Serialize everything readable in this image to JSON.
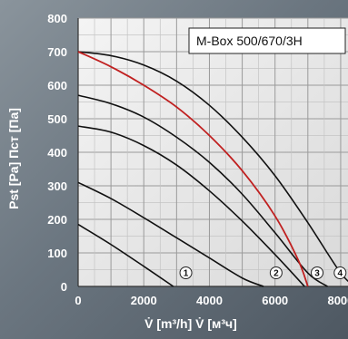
{
  "chart_data": {
    "type": "line",
    "title": "M-Box 500/670/3H",
    "xlabel": "V̇ [m³/h]  V̇ [м³ч]",
    "ylabel": "Pst [Pa]  Пст [Па]",
    "xlim": [
      0,
      8500
    ],
    "ylim": [
      0,
      800
    ],
    "x_ticks": [
      0,
      2000,
      4000,
      6000,
      8000
    ],
    "y_ticks": [
      0,
      100,
      200,
      300,
      400,
      500,
      600,
      700,
      800
    ],
    "grid": true,
    "series": [
      {
        "name": "1",
        "color": "#111111",
        "points": [
          [
            0,
            185
          ],
          [
            1000,
            125
          ],
          [
            2000,
            60
          ],
          [
            2900,
            0
          ]
        ]
      },
      {
        "name": "2",
        "color": "#111111",
        "points": [
          [
            0,
            310
          ],
          [
            1000,
            262
          ],
          [
            2000,
            205
          ],
          [
            3000,
            145
          ],
          [
            4000,
            85
          ],
          [
            5000,
            25
          ],
          [
            5650,
            0
          ]
        ]
      },
      {
        "name": "3",
        "color": "#111111",
        "points": [
          [
            0,
            478
          ],
          [
            1000,
            460
          ],
          [
            2000,
            420
          ],
          [
            3000,
            362
          ],
          [
            4000,
            285
          ],
          [
            5000,
            195
          ],
          [
            6000,
            95
          ],
          [
            6900,
            0
          ]
        ]
      },
      {
        "name": "4",
        "color": "#111111",
        "points": [
          [
            0,
            570
          ],
          [
            1000,
            545
          ],
          [
            2000,
            505
          ],
          [
            3000,
            445
          ],
          [
            4000,
            370
          ],
          [
            5000,
            275
          ],
          [
            6000,
            160
          ],
          [
            7000,
            40
          ],
          [
            7600,
            0
          ]
        ]
      },
      {
        "name": "5",
        "color": "#111111",
        "points": [
          [
            0,
            700
          ],
          [
            1000,
            688
          ],
          [
            2000,
            660
          ],
          [
            3000,
            612
          ],
          [
            4000,
            540
          ],
          [
            5000,
            445
          ],
          [
            6000,
            330
          ],
          [
            7000,
            190
          ],
          [
            8000,
            40
          ],
          [
            8450,
            0
          ]
        ]
      },
      {
        "name": "",
        "color": "#c02020",
        "points": [
          [
            0,
            700
          ],
          [
            1000,
            655
          ],
          [
            2000,
            600
          ],
          [
            3000,
            535
          ],
          [
            4000,
            450
          ],
          [
            5000,
            345
          ],
          [
            6000,
            210
          ],
          [
            6700,
            80
          ],
          [
            7000,
            0
          ]
        ]
      }
    ],
    "curve_labels": [
      {
        "text": "1",
        "x": 2950
      },
      {
        "text": "2",
        "x": 5700
      },
      {
        "text": "3",
        "x": 6950
      },
      {
        "text": "4",
        "x": 7650
      },
      {
        "text": "5",
        "x": 8500
      }
    ]
  }
}
